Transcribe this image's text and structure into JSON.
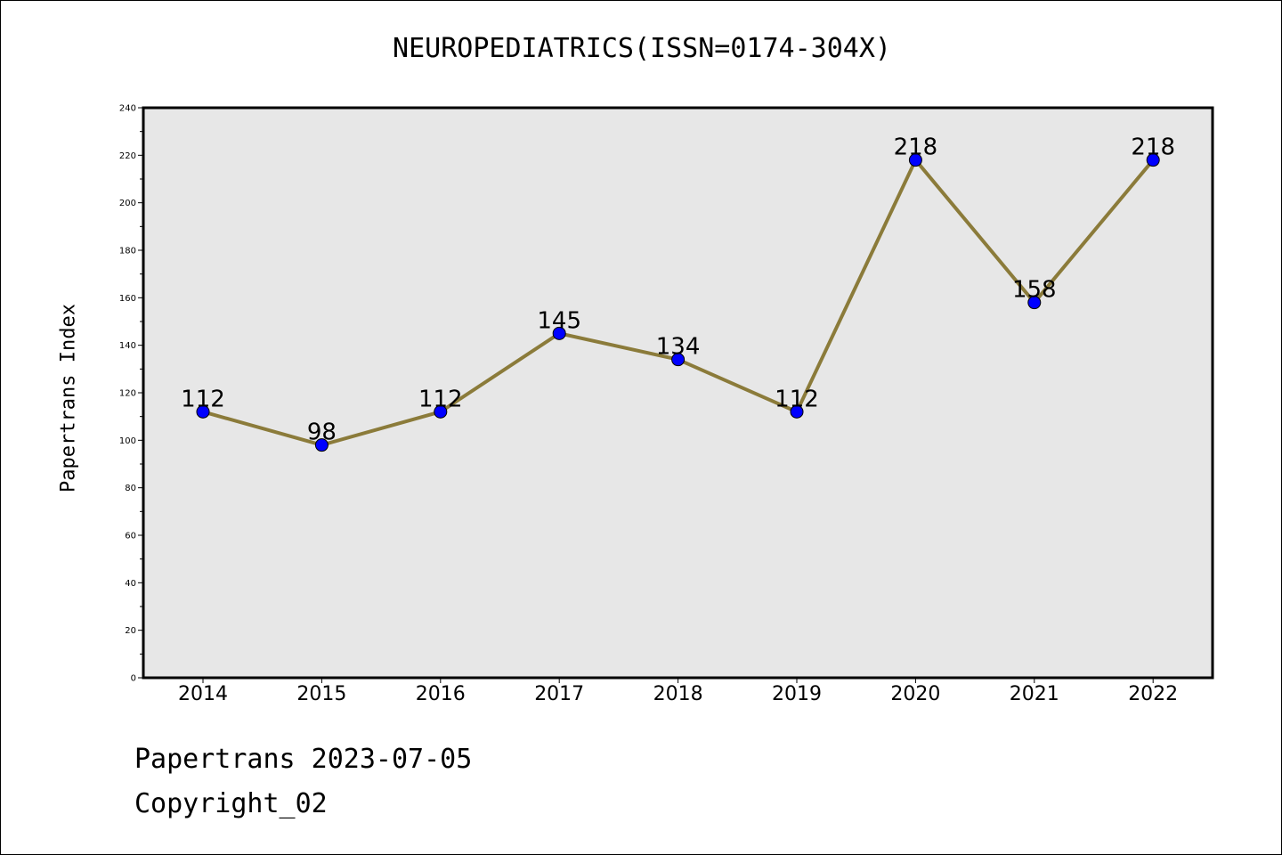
{
  "chart_data": {
    "type": "line",
    "title": "NEUROPEDIATRICS(ISSN=0174-304X)",
    "xlabel": "",
    "ylabel": "Papertrans Index",
    "categories": [
      "2014",
      "2015",
      "2016",
      "2017",
      "2018",
      "2019",
      "2020",
      "2021",
      "2022"
    ],
    "series": [
      {
        "values": [
          112,
          98,
          112,
          145,
          134,
          112,
          218,
          158,
          218
        ]
      }
    ],
    "ylim": [
      0,
      240
    ],
    "yticks": [
      0,
      20,
      40,
      60,
      80,
      100,
      120,
      140,
      160,
      180,
      200,
      220,
      240
    ],
    "grid": false,
    "data_labels": true,
    "line_color": "#8b7b3a",
    "marker_color": "#0000ff",
    "plot_background": "#e7e7e7"
  },
  "footer": {
    "date_line": "Papertrans 2023-07-05",
    "copyright_line": "Copyright_02"
  }
}
